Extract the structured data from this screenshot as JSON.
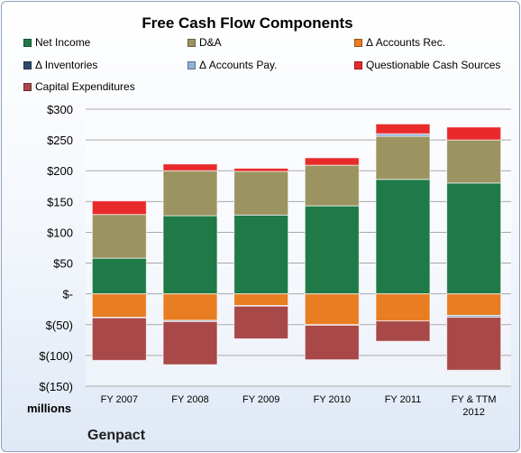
{
  "title": "Free Cash Flow Components",
  "units_label": "millions",
  "company": "Genpact",
  "colors": {
    "net_income": "#1f7a47",
    "da": "#9b9461",
    "accounts_rec": "#e87d22",
    "inventories": "#2c4a6b",
    "accounts_pay": "#8fb0d8",
    "questionable": "#e82a2a",
    "capex": "#a84848"
  },
  "chart_data": {
    "type": "bar",
    "stacked": true,
    "title": "Free Cash Flow Components",
    "ylabel": "millions",
    "ylim": [
      -150,
      300
    ],
    "y_ticks": [
      300,
      250,
      200,
      150,
      100,
      50,
      0,
      -50,
      -100,
      -150
    ],
    "y_tick_labels": [
      "$300",
      "$250",
      "$200",
      "$150",
      "$100",
      "$50",
      "$-",
      "$(50)",
      "$(100)",
      "$(150)"
    ],
    "grid": true,
    "legend": "top",
    "categories": [
      "FY 2007",
      "FY 2008",
      "FY 2009",
      "FY 2010",
      "FY 2011",
      "FY & TTM 2012"
    ],
    "series": [
      {
        "name": "Net Income",
        "key": "net_income",
        "values": [
          58,
          127,
          128,
          143,
          186,
          180
        ]
      },
      {
        "name": "D&A",
        "key": "da",
        "values": [
          71,
          73,
          71,
          66,
          70,
          70
        ]
      },
      {
        "name": "Δ Accounts Rec.",
        "key": "accounts_rec",
        "values": [
          -38,
          -43,
          -19,
          -50,
          -44,
          -35
        ]
      },
      {
        "name": "Δ Inventories",
        "key": "inventories",
        "values": [
          0,
          0,
          0,
          0,
          0,
          0
        ]
      },
      {
        "name": "Δ Accounts Pay.",
        "key": "accounts_pay",
        "values": [
          -1,
          -2,
          -1,
          -1,
          4,
          -3
        ]
      },
      {
        "name": "Questionable Cash Sources",
        "key": "questionable",
        "values": [
          22,
          11,
          5,
          12,
          16,
          21
        ]
      },
      {
        "name": "Capital Expenditures",
        "key": "capex",
        "values": [
          -69,
          -70,
          -53,
          -56,
          -33,
          -86
        ]
      }
    ]
  }
}
